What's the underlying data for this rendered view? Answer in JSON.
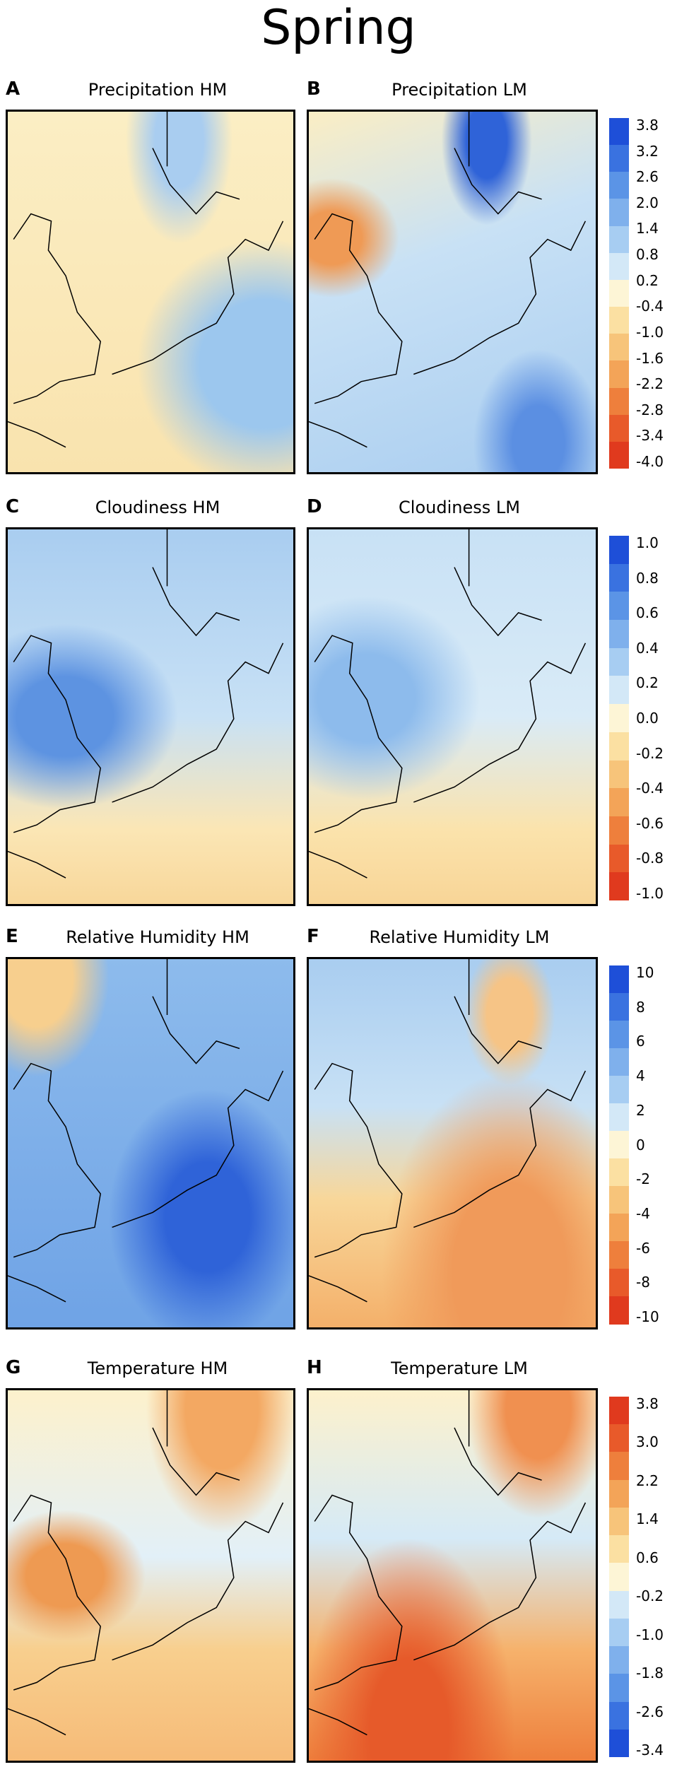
{
  "title": "Spring",
  "rows": [
    {
      "panels": [
        {
          "letter": "A",
          "title": "Precipitation HM"
        },
        {
          "letter": "B",
          "title": "Precipitation LM"
        }
      ],
      "colorbar": [
        "3.8",
        "3.2",
        "2.6",
        "2.0",
        "1.4",
        "0.8",
        "0.2",
        "-0.4",
        "-1.0",
        "-1.6",
        "-2.2",
        "-2.8",
        "-3.4",
        "-4.0"
      ]
    },
    {
      "panels": [
        {
          "letter": "C",
          "title": "Cloudiness HM"
        },
        {
          "letter": "D",
          "title": "Cloudiness LM"
        }
      ],
      "colorbar": [
        "1.0",
        "0.8",
        "0.6",
        "0.4",
        "0.2",
        "0.0",
        "-0.2",
        "-0.4",
        "-0.6",
        "-0.8",
        "-1.0"
      ]
    },
    {
      "panels": [
        {
          "letter": "E",
          "title": "Relative Humidity HM"
        },
        {
          "letter": "F",
          "title": "Relative Humidity LM"
        }
      ],
      "colorbar": [
        "10",
        "8",
        "6",
        "4",
        "2",
        "0",
        "-2",
        "-4",
        "-6",
        "-8",
        "-10"
      ]
    },
    {
      "panels": [
        {
          "letter": "G",
          "title": "Temperature HM"
        },
        {
          "letter": "H",
          "title": "Temperature LM"
        }
      ],
      "colorbar": [
        "3.8",
        "3.0",
        "2.2",
        "1.4",
        "0.6",
        "-0.2",
        "-1.0",
        "-1.8",
        "-2.6",
        "-3.4"
      ]
    }
  ]
}
